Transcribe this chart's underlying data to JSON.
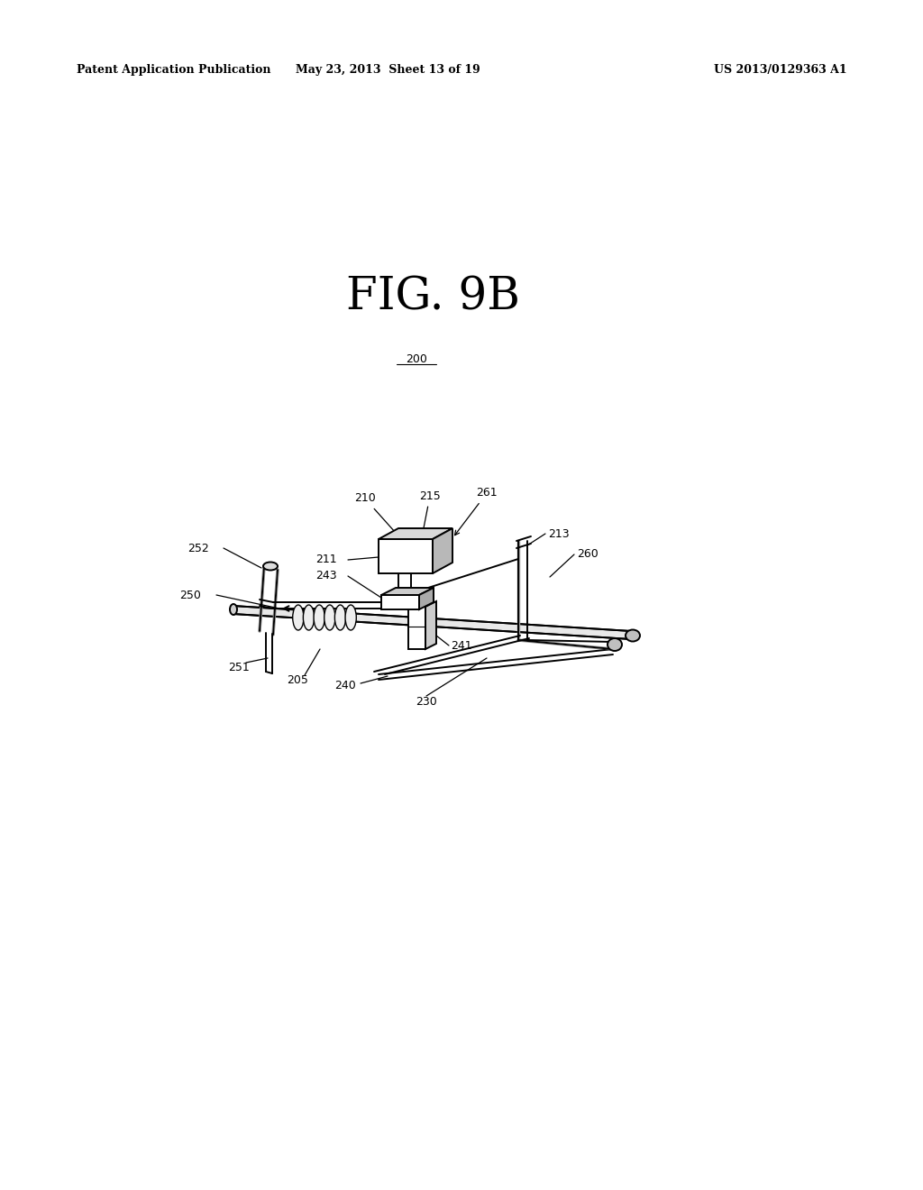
{
  "background_color": "#ffffff",
  "header_left": "Patent Application Publication",
  "header_center": "May 23, 2013  Sheet 13 of 19",
  "header_right": "US 2013/0129363 A1",
  "fig_title": "FIG. 9B",
  "fig_title_fontsize": 36,
  "header_fontsize": 9,
  "label_fontsize": 9,
  "label_200_underline": true
}
